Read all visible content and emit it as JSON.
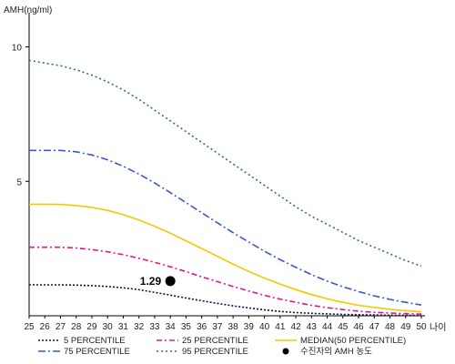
{
  "chart_data": {
    "type": "line",
    "ylabel": "AMH(ng/ml)",
    "xlabel": "나이",
    "ylim": [
      0,
      11
    ],
    "xlim": [
      25,
      50
    ],
    "yticks": [
      5,
      10
    ],
    "x": [
      25,
      26,
      27,
      28,
      29,
      30,
      31,
      32,
      33,
      34,
      35,
      36,
      37,
      38,
      39,
      40,
      41,
      42,
      43,
      44,
      45,
      46,
      47,
      48,
      49,
      50
    ],
    "series": [
      {
        "name": "5 PERCENTILE",
        "color": "#101050",
        "dash": "2,2",
        "values": [
          1.15,
          1.15,
          1.15,
          1.14,
          1.12,
          1.09,
          1.04,
          0.97,
          0.87,
          0.77,
          0.66,
          0.56,
          0.46,
          0.37,
          0.29,
          0.22,
          0.16,
          0.12,
          0.09,
          0.07,
          0.05,
          0.04,
          0.03,
          0.02,
          0.02,
          0.01
        ]
      },
      {
        "name": "25 PERCENTILE",
        "color": "#e0188a",
        "dash": "6,3,2,3",
        "values": [
          2.55,
          2.55,
          2.55,
          2.52,
          2.46,
          2.38,
          2.27,
          2.14,
          1.99,
          1.82,
          1.64,
          1.45,
          1.27,
          1.09,
          0.92,
          0.76,
          0.62,
          0.5,
          0.39,
          0.3,
          0.23,
          0.17,
          0.13,
          0.1,
          0.08,
          0.06
        ]
      },
      {
        "name": "MEDIAN(50 PERCENTILE)",
        "color": "#f5c800",
        "dash": "",
        "values": [
          4.15,
          4.15,
          4.14,
          4.1,
          4.03,
          3.92,
          3.76,
          3.56,
          3.33,
          3.07,
          2.79,
          2.5,
          2.21,
          1.92,
          1.65,
          1.4,
          1.18,
          0.97,
          0.79,
          0.63,
          0.5,
          0.39,
          0.31,
          0.24,
          0.19,
          0.15
        ]
      },
      {
        "name": "75 PERCENTILE",
        "color": "#3a58c8",
        "dash": "8,3,2,3",
        "values": [
          6.15,
          6.15,
          6.15,
          6.1,
          5.98,
          5.8,
          5.56,
          5.27,
          4.94,
          4.58,
          4.21,
          3.83,
          3.46,
          3.09,
          2.74,
          2.4,
          2.09,
          1.8,
          1.53,
          1.29,
          1.08,
          0.9,
          0.74,
          0.61,
          0.5,
          0.4
        ]
      },
      {
        "name": "95 PERCENTILE",
        "color": "#2a7a4a",
        "dash": "2,3",
        "values": [
          9.5,
          9.4,
          9.3,
          9.15,
          8.95,
          8.7,
          8.4,
          8.05,
          7.65,
          7.25,
          6.85,
          6.45,
          6.05,
          5.65,
          5.25,
          4.85,
          4.45,
          4.05,
          3.7,
          3.4,
          3.1,
          2.8,
          2.55,
          2.3,
          2.05,
          1.85
        ]
      }
    ],
    "point": {
      "name": "수진자의 AMH 농도",
      "x": 34.0,
      "y": 1.29,
      "label": "1.29",
      "color": "#000000"
    },
    "legend": {
      "placement": "bottom",
      "order": [
        "5 PERCENTILE",
        "25 PERCENTILE",
        "MEDIAN(50 PERCENTILE)",
        "75 PERCENTILE",
        "95 PERCENTILE",
        "수진자의 AMH 농도"
      ]
    },
    "grid": false
  }
}
